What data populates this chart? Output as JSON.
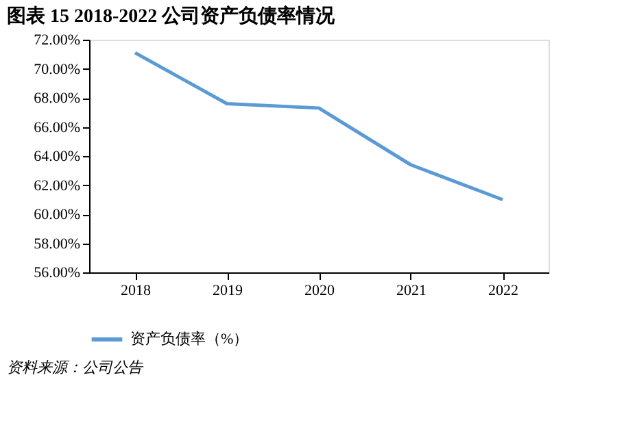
{
  "chart_data": {
    "type": "line",
    "title": "图表 15   2018-2022 公司资产负债率情况",
    "categories": [
      "2018",
      "2019",
      "2020",
      "2021",
      "2022"
    ],
    "series": [
      {
        "name": "资产负债率（%）",
        "color": "#5b9bd5",
        "values": [
          71.1,
          67.6,
          67.3,
          63.4,
          61.0
        ]
      }
    ],
    "ylim": [
      56,
      72
    ],
    "yticks": [
      {
        "value": 56,
        "label": "56.00%"
      },
      {
        "value": 58,
        "label": "58.00%"
      },
      {
        "value": 60,
        "label": "60.00%"
      },
      {
        "value": 62,
        "label": "62.00%"
      },
      {
        "value": 64,
        "label": "64.00%"
      },
      {
        "value": 66,
        "label": "66.00%"
      },
      {
        "value": 68,
        "label": "68.00%"
      },
      {
        "value": 70,
        "label": "70.00%"
      },
      {
        "value": 72,
        "label": "72.00%"
      }
    ],
    "grid": false,
    "legend": "bottom",
    "marker": "none",
    "line_style": "solid",
    "annotations": [
      "资料来源：公司公告"
    ]
  }
}
